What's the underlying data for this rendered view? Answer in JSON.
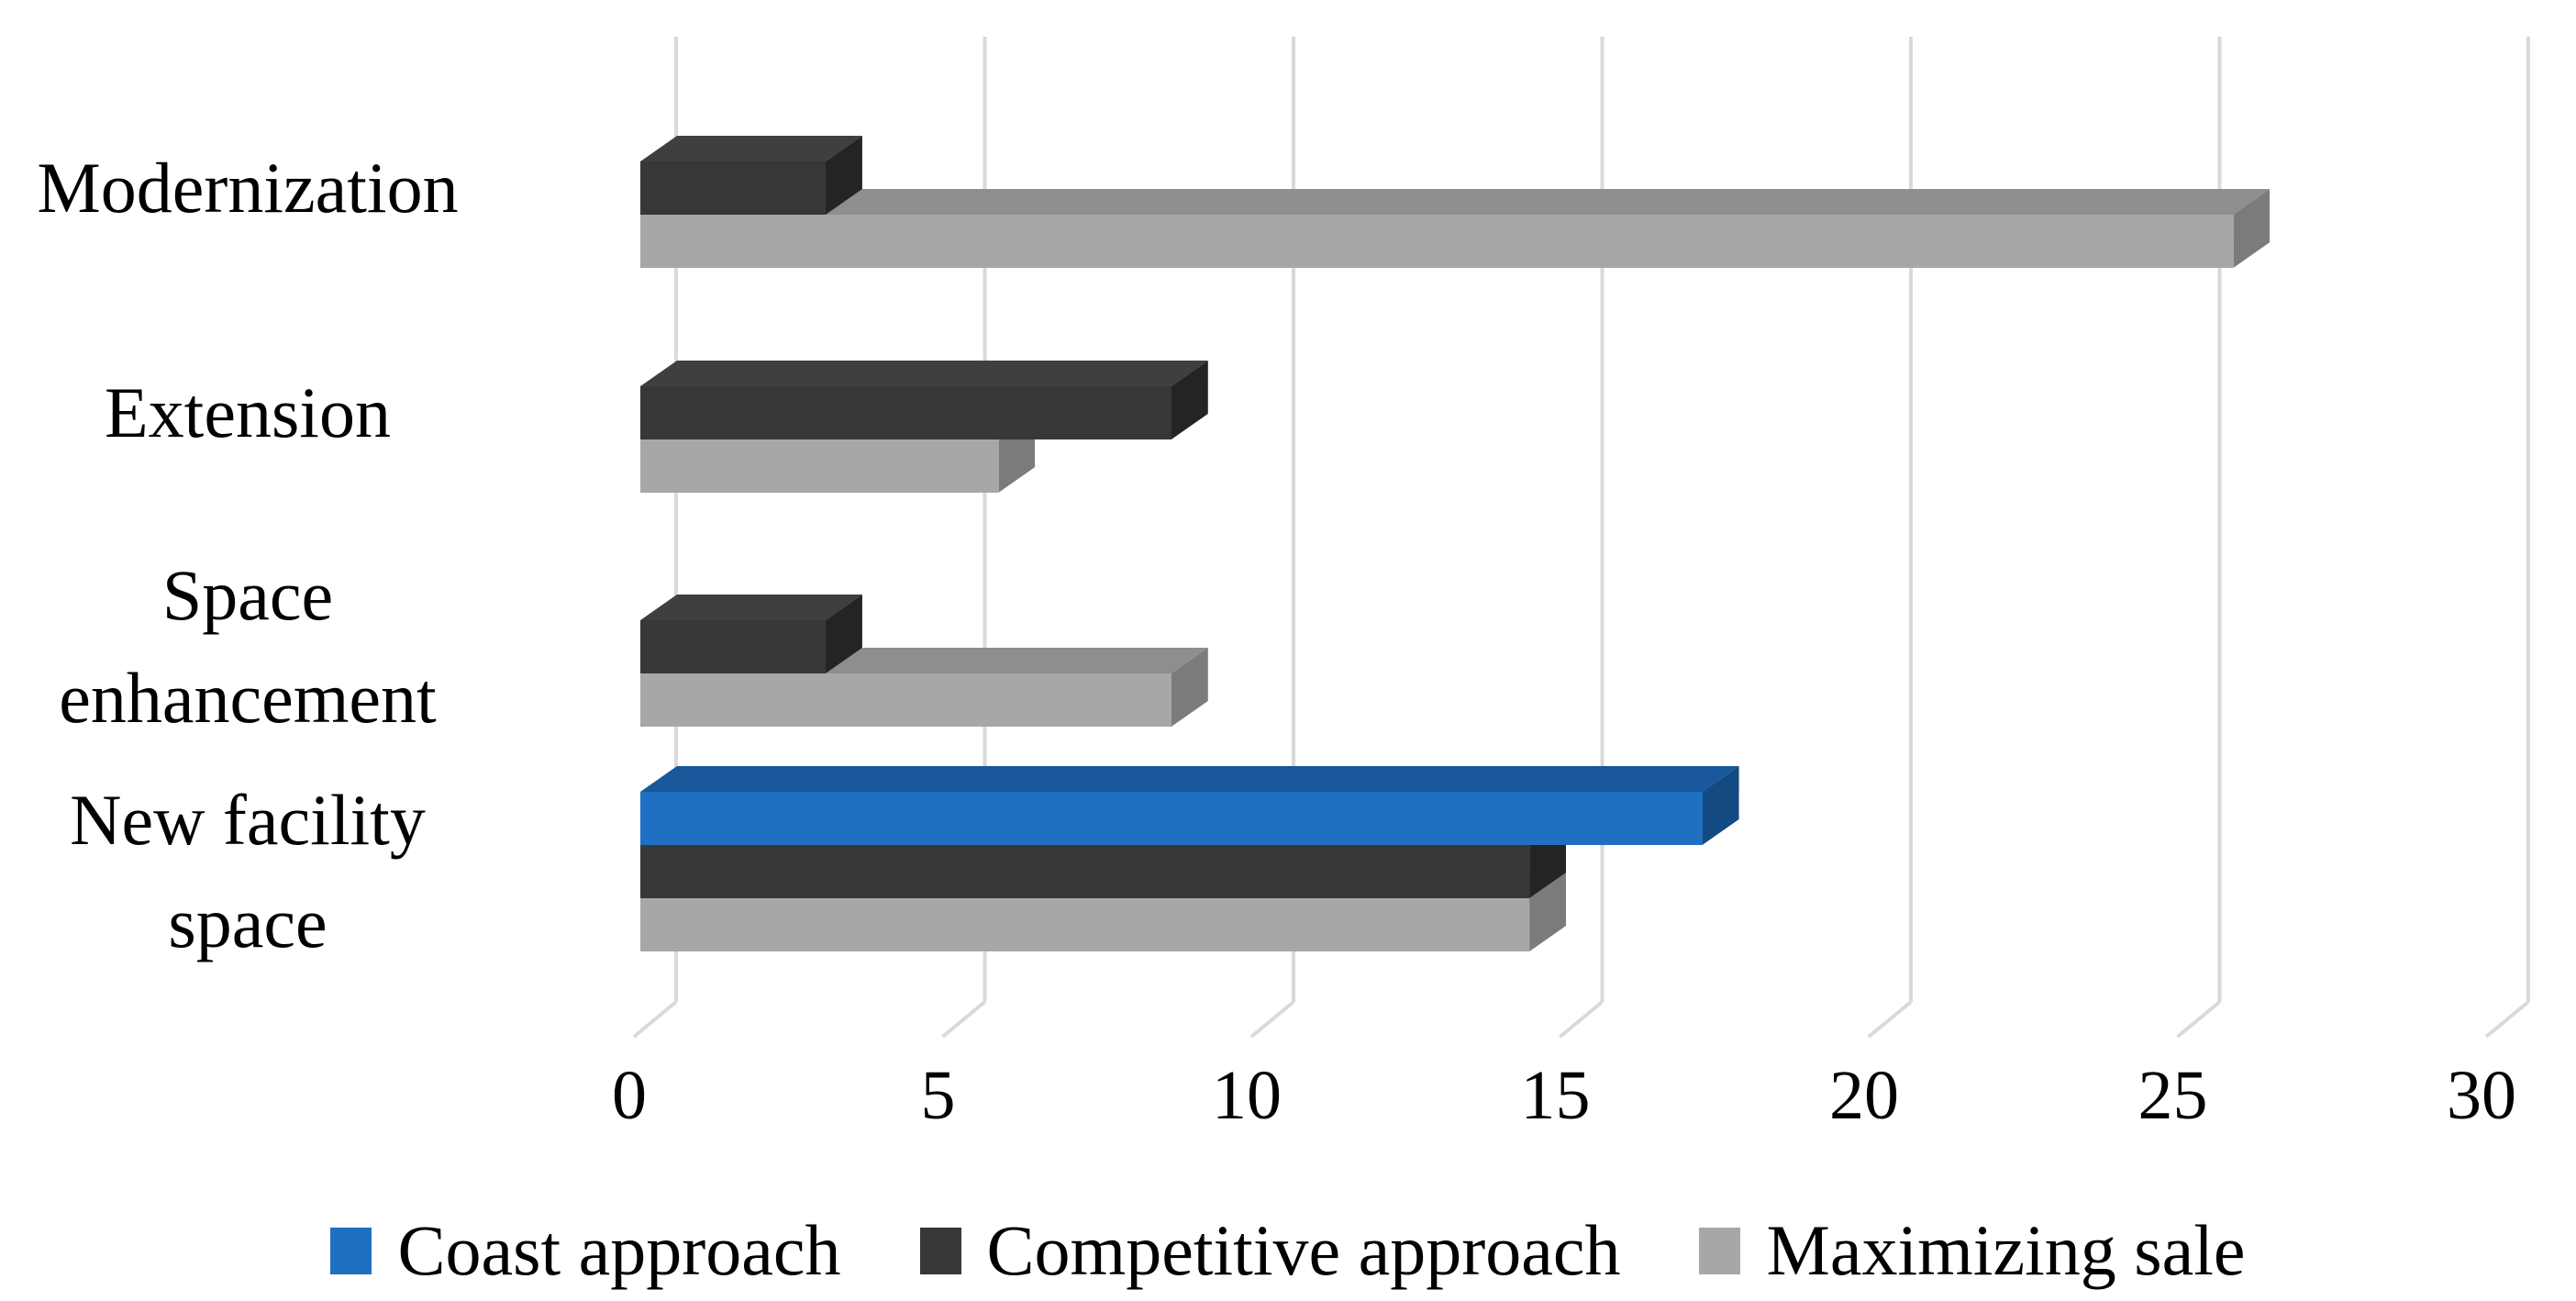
{
  "chart_data": {
    "type": "bar",
    "orientation": "horizontal",
    "style": "3d-bevel",
    "title": "",
    "xlabel": "",
    "ylabel": "",
    "categories": [
      "Modernization",
      "Extension",
      "Space enhancement",
      "New facility space"
    ],
    "series": [
      {
        "name": "Coast approach",
        "color": "#1F6FC2",
        "color_top": "#18589B",
        "color_side": "#144A82",
        "values": [
          0,
          0,
          0,
          17.2
        ]
      },
      {
        "name": "Competitive approach",
        "color": "#373737",
        "color_top": "#3F3F3F",
        "color_side": "#242424",
        "values": [
          3,
          8.6,
          3,
          14.4
        ]
      },
      {
        "name": "Maximizing sale",
        "color": "#A7A7A7",
        "color_top": "#8E8E8E",
        "color_side": "#7B7B7B",
        "values": [
          25.8,
          5.8,
          8.6,
          14.4
        ]
      }
    ],
    "xlim": [
      0,
      30
    ],
    "x_ticks": [
      0,
      5,
      10,
      15,
      20,
      25,
      30
    ],
    "x_tick_labels": [
      "0",
      "5",
      "10",
      "15",
      "20",
      "25",
      "30"
    ],
    "grid": "vertical",
    "gridline_color": "#D9D9D9",
    "legend_position": "bottom",
    "background_color": "#FFFFFF",
    "text_color": "#000000"
  }
}
